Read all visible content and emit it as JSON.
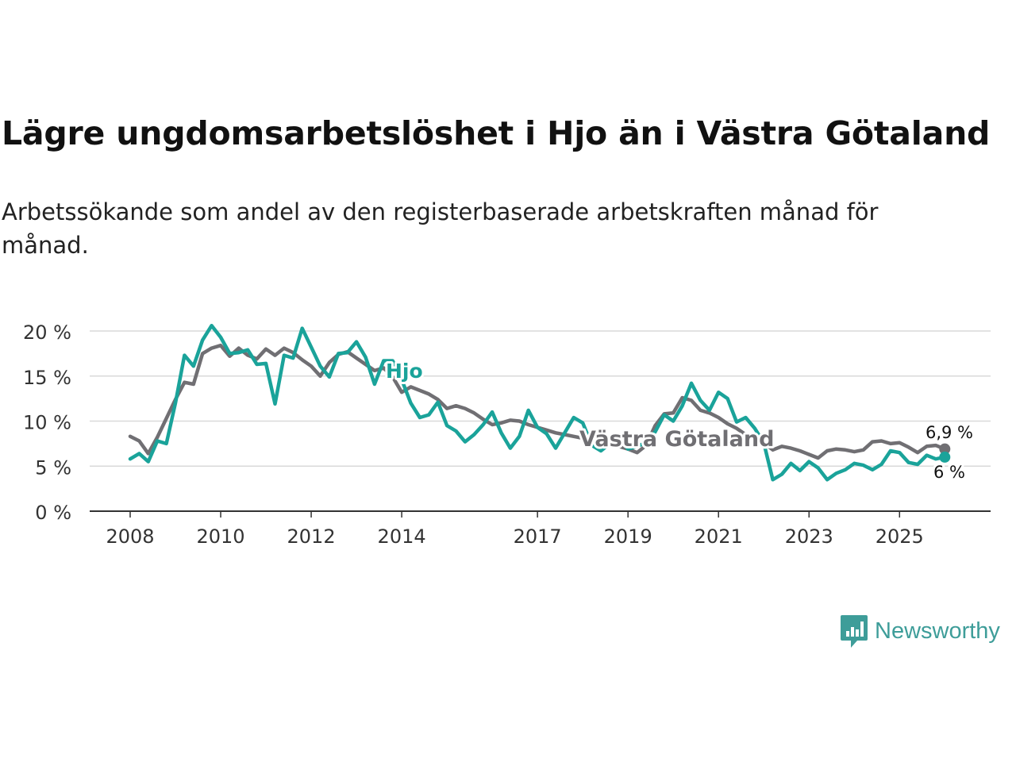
{
  "title": "Lägre ungdomsarbetslöshet i Hjo än i Västra Götaland",
  "subtitle": "Arbetssökande som andel av den registerbaserade arbetskraften månad för månad.",
  "brand": {
    "name": "Newsworthy",
    "icon": "newsworthy-logo-icon",
    "color": "#3e9d99"
  },
  "colors": {
    "hjo": "#1aa39a",
    "vastra": "#706f73",
    "grid": "#d9d9d9",
    "axis": "#333333"
  },
  "chart_data": {
    "type": "line",
    "title": "Lägre ungdomsarbetslöshet i Hjo än i Västra Götaland",
    "xlabel": "",
    "ylabel": "",
    "ylim": [
      0,
      20
    ],
    "xlim": [
      2008.0,
      2026.1
    ],
    "x_ticks": [
      2008,
      2010,
      2012,
      2014,
      2017,
      2019,
      2021,
      2023,
      2025
    ],
    "y_ticks": [
      0,
      5,
      10,
      15,
      20
    ],
    "y_tick_labels": [
      "0 %",
      "5 %",
      "10 %",
      "15 %",
      "20 %"
    ],
    "grid": true,
    "series": [
      {
        "name": "Västra Götaland",
        "label": "Västra Götaland",
        "end_label": "6,9 %",
        "color": "#706f73",
        "x": [
          2008.0,
          2008.2,
          2008.4,
          2008.6,
          2008.8,
          2009.0,
          2009.2,
          2009.4,
          2009.6,
          2009.8,
          2010.0,
          2010.2,
          2010.4,
          2010.6,
          2010.8,
          2011.0,
          2011.2,
          2011.4,
          2011.6,
          2011.8,
          2012.0,
          2012.2,
          2012.4,
          2012.6,
          2012.8,
          2013.0,
          2013.2,
          2013.4,
          2013.6,
          2013.8,
          2014.0,
          2014.2,
          2014.4,
          2014.6,
          2014.8,
          2015.0,
          2015.2,
          2015.4,
          2015.6,
          2015.8,
          2016.0,
          2016.2,
          2016.4,
          2016.6,
          2016.8,
          2017.0,
          2017.2,
          2017.4,
          2017.6,
          2017.8,
          2018.0,
          2018.2,
          2018.4,
          2018.6,
          2018.8,
          2019.0,
          2019.2,
          2019.4,
          2019.6,
          2019.8,
          2020.0,
          2020.2,
          2020.4,
          2020.6,
          2020.8,
          2021.0,
          2021.2,
          2021.4,
          2021.6,
          2021.8,
          2022.0,
          2022.2,
          2022.4,
          2022.6,
          2022.8,
          2023.0,
          2023.2,
          2023.4,
          2023.6,
          2023.8,
          2024.0,
          2024.2,
          2024.4,
          2024.6,
          2024.8,
          2025.0,
          2025.2,
          2025.4,
          2025.6,
          2025.8,
          2026.0
        ],
        "values": [
          8.3,
          7.8,
          6.4,
          8.2,
          10.3,
          12.4,
          14.3,
          14.1,
          17.5,
          18.1,
          18.4,
          17.2,
          18.1,
          17.3,
          16.9,
          18.0,
          17.3,
          18.1,
          17.6,
          16.8,
          16.1,
          15.0,
          16.5,
          17.4,
          17.7,
          17.0,
          16.3,
          15.6,
          15.9,
          14.9,
          13.2,
          13.8,
          13.4,
          13.0,
          12.4,
          11.4,
          11.7,
          11.4,
          10.9,
          10.2,
          9.6,
          9.8,
          10.1,
          10.0,
          9.6,
          9.3,
          9.0,
          8.7,
          8.5,
          8.3,
          8.1,
          8.0,
          7.7,
          7.5,
          7.2,
          6.9,
          6.5,
          7.3,
          9.5,
          10.8,
          10.9,
          12.6,
          12.3,
          11.2,
          10.9,
          10.4,
          9.7,
          9.2,
          8.5,
          7.9,
          7.6,
          6.8,
          7.2,
          7.0,
          6.7,
          6.3,
          5.9,
          6.7,
          6.9,
          6.8,
          6.6,
          6.8,
          7.7,
          7.8,
          7.5,
          7.6,
          7.1,
          6.5,
          7.2,
          7.3,
          6.9
        ]
      },
      {
        "name": "Hjo",
        "label": "Hjo",
        "end_label": "6 %",
        "color": "#1aa39a",
        "x": [
          2008.0,
          2008.2,
          2008.4,
          2008.6,
          2008.8,
          2009.0,
          2009.2,
          2009.4,
          2009.6,
          2009.8,
          2010.0,
          2010.2,
          2010.4,
          2010.6,
          2010.8,
          2011.0,
          2011.2,
          2011.4,
          2011.6,
          2011.8,
          2012.0,
          2012.2,
          2012.4,
          2012.6,
          2012.8,
          2013.0,
          2013.2,
          2013.4,
          2013.6,
          2013.8,
          2014.0,
          2014.2,
          2014.4,
          2014.6,
          2014.8,
          2015.0,
          2015.2,
          2015.4,
          2015.6,
          2015.8,
          2016.0,
          2016.2,
          2016.4,
          2016.6,
          2016.8,
          2017.0,
          2017.2,
          2017.4,
          2017.6,
          2017.8,
          2018.0,
          2018.2,
          2018.4,
          2018.6,
          2018.8,
          2019.0,
          2019.2,
          2019.4,
          2019.6,
          2019.8,
          2020.0,
          2020.2,
          2020.4,
          2020.6,
          2020.8,
          2021.0,
          2021.2,
          2021.4,
          2021.6,
          2021.8,
          2022.0,
          2022.2,
          2022.4,
          2022.6,
          2022.8,
          2023.0,
          2023.2,
          2023.4,
          2023.6,
          2023.8,
          2024.0,
          2024.2,
          2024.4,
          2024.6,
          2024.8,
          2025.0,
          2025.2,
          2025.4,
          2025.6,
          2025.8,
          2026.0
        ],
        "values": [
          5.8,
          6.4,
          5.5,
          7.8,
          7.5,
          12.0,
          17.3,
          16.1,
          19.0,
          20.6,
          19.3,
          17.5,
          17.6,
          17.9,
          16.3,
          16.4,
          11.9,
          17.3,
          17.0,
          20.3,
          18.2,
          16.1,
          14.9,
          17.5,
          17.6,
          18.8,
          17.1,
          14.1,
          16.7,
          16.7,
          14.6,
          12.0,
          10.4,
          10.7,
          12.1,
          9.5,
          8.9,
          7.7,
          8.5,
          9.6,
          11.0,
          8.7,
          7.0,
          8.3,
          11.2,
          9.3,
          8.6,
          7.0,
          8.7,
          10.4,
          9.8,
          7.3,
          6.7,
          7.5,
          8.2,
          6.9,
          7.2,
          7.6,
          8.8,
          10.7,
          10.0,
          11.7,
          14.2,
          12.3,
          11.2,
          13.2,
          12.5,
          9.9,
          10.4,
          9.2,
          7.6,
          3.5,
          4.1,
          5.3,
          4.5,
          5.5,
          4.8,
          3.5,
          4.2,
          4.6,
          5.3,
          5.1,
          4.6,
          5.2,
          6.7,
          6.5,
          5.4,
          5.2,
          6.2,
          5.8,
          6.0
        ]
      }
    ]
  }
}
